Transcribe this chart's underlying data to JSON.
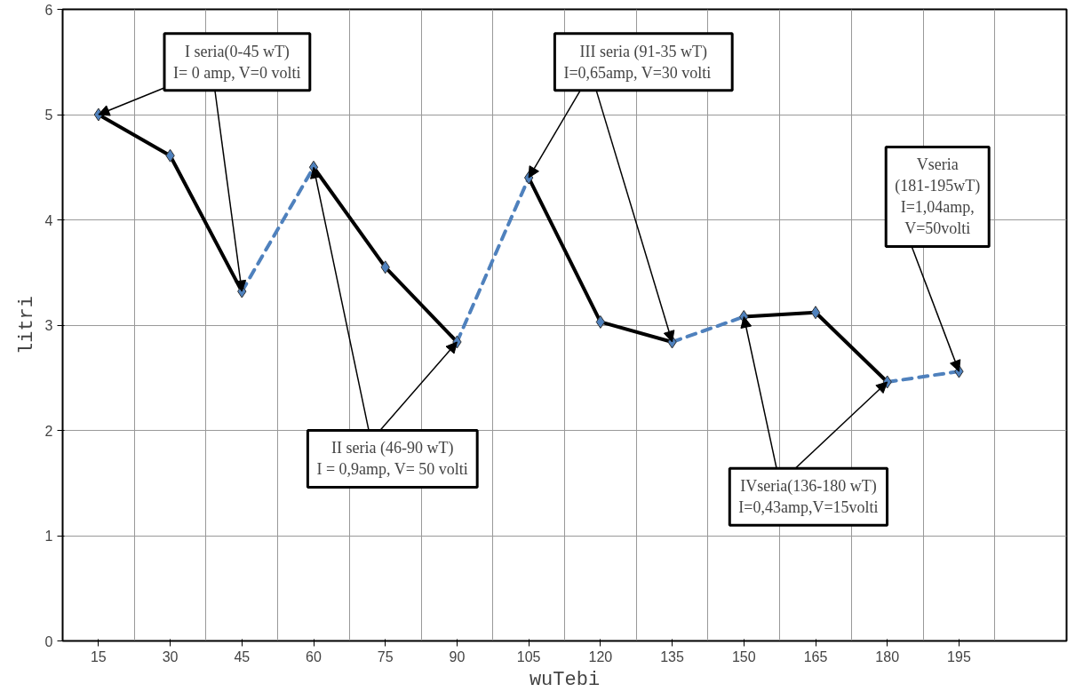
{
  "chart_data": {
    "type": "line",
    "xlabel": "wuTebi",
    "ylabel": "litri",
    "xlim": [
      7.5,
      217.5
    ],
    "xticks": [
      15,
      30,
      45,
      60,
      75,
      90,
      105,
      120,
      135,
      150,
      165,
      180,
      195
    ],
    "ylim": [
      0,
      6
    ],
    "yticks": [
      0,
      1,
      2,
      3,
      4,
      5,
      6
    ],
    "grid": true,
    "series": [
      {
        "color": "#000000",
        "line_style": "solid",
        "x": [
          15,
          30,
          45
        ],
        "values": [
          5.0,
          4.61,
          3.32
        ]
      },
      {
        "color": "#4f81bd",
        "line_style": "dashed",
        "x": [
          45,
          60
        ],
        "values": [
          3.32,
          4.5
        ]
      },
      {
        "color": "#000000",
        "line_style": "solid",
        "x": [
          60,
          75,
          90
        ],
        "values": [
          4.5,
          3.55,
          2.84
        ]
      },
      {
        "color": "#4f81bd",
        "line_style": "dashed",
        "x": [
          90,
          105
        ],
        "values": [
          2.84,
          4.4
        ]
      },
      {
        "color": "#000000",
        "line_style": "solid",
        "x": [
          105,
          120,
          135
        ],
        "values": [
          4.4,
          3.03,
          2.84
        ]
      },
      {
        "color": "#4f81bd",
        "line_style": "dashed",
        "x": [
          135,
          150
        ],
        "values": [
          2.84,
          3.08
        ]
      },
      {
        "color": "#000000",
        "line_style": "solid",
        "x": [
          150,
          165,
          180
        ],
        "values": [
          3.08,
          3.12,
          2.46
        ]
      },
      {
        "color": "#4f81bd",
        "line_style": "dashed",
        "x": [
          180,
          195
        ],
        "values": [
          2.46,
          2.56
        ]
      },
      {
        "type": "scatter",
        "color": "#4f81bd",
        "marker": "diamond",
        "x": [
          15,
          30,
          45,
          60,
          75,
          90,
          105,
          120,
          135,
          150,
          165,
          180,
          195
        ],
        "values": [
          5.0,
          4.61,
          3.32,
          4.5,
          3.55,
          2.84,
          4.4,
          3.03,
          2.84,
          3.08,
          3.12,
          2.46,
          2.56
        ]
      }
    ],
    "annotations": [
      {
        "text": "I seria(0-45 wT)\nI= 0 amp, V=0 volti",
        "x": 15,
        "y": 5.0
      },
      {
        "text": "II seria (46-90 wT)\nI = 0,9amp, V= 50 volti",
        "x": 60,
        "y": 4.5
      },
      {
        "text": "III seria (91-35 wT)\nI=0,65amp,    V=30 volti",
        "x": 105,
        "y": 4.4
      },
      {
        "text": "IVseria(136-180 wT)\nI=0,43amp,V=15volti",
        "x": 150,
        "y": 3.08
      },
      {
        "text": "Vseria\n(181-195wT)\nI=1,04amp,\nV=50volti",
        "x": 195,
        "y": 2.56
      }
    ]
  }
}
